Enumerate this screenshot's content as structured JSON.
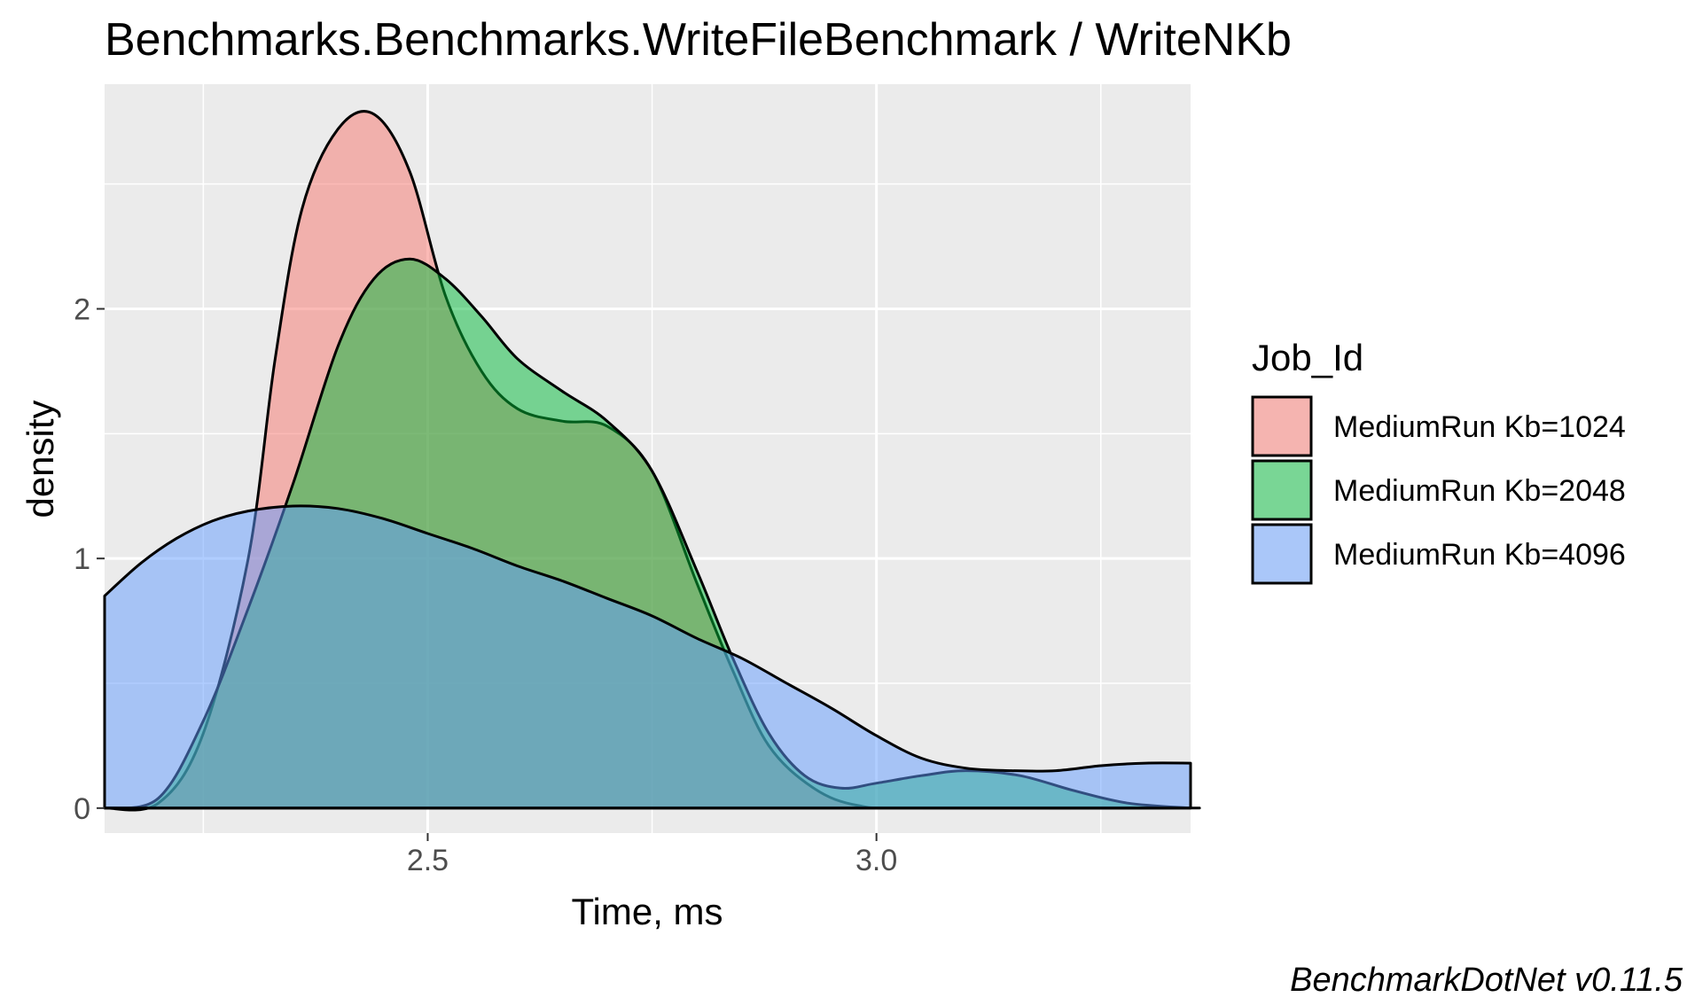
{
  "chart_data": {
    "type": "area",
    "title": "Benchmarks.Benchmarks.WriteFileBenchmark / WriteNKb",
    "xlabel": "Time, ms",
    "ylabel": "density",
    "xlim": [
      2.14,
      3.35
    ],
    "ylim": [
      -0.1,
      2.9
    ],
    "x_ticks": [
      2.5,
      3.0
    ],
    "x_tick_labels": [
      "2.5",
      "3.0"
    ],
    "y_ticks": [
      0,
      1,
      2
    ],
    "y_tick_labels": [
      "0",
      "1",
      "2"
    ],
    "grid": true,
    "legend": {
      "title": "Job_Id",
      "position": "right",
      "entries": [
        "MediumRun Kb=1024",
        "MediumRun Kb=2048",
        "MediumRun Kb=4096"
      ]
    },
    "caption": "BenchmarkDotNet v0.11.5",
    "series": [
      {
        "name": "MediumRun Kb=1024",
        "color": "#F8766D",
        "points": [
          [
            2.14,
            0.0
          ],
          [
            2.2,
            0.02
          ],
          [
            2.25,
            0.3
          ],
          [
            2.3,
            1.0
          ],
          [
            2.33,
            1.8
          ],
          [
            2.36,
            2.4
          ],
          [
            2.4,
            2.72
          ],
          [
            2.44,
            2.78
          ],
          [
            2.48,
            2.55
          ],
          [
            2.52,
            2.05
          ],
          [
            2.56,
            1.75
          ],
          [
            2.6,
            1.6
          ],
          [
            2.65,
            1.55
          ],
          [
            2.7,
            1.53
          ],
          [
            2.75,
            1.35
          ],
          [
            2.8,
            0.9
          ],
          [
            2.84,
            0.55
          ],
          [
            2.88,
            0.25
          ],
          [
            2.93,
            0.08
          ],
          [
            2.98,
            0.01
          ],
          [
            3.05,
            0.0
          ],
          [
            3.36,
            0.0
          ]
        ]
      },
      {
        "name": "MediumRun Kb=2048",
        "color": "#00BA38",
        "points": [
          [
            2.14,
            0.0
          ],
          [
            2.2,
            0.04
          ],
          [
            2.25,
            0.35
          ],
          [
            2.3,
            0.8
          ],
          [
            2.35,
            1.3
          ],
          [
            2.4,
            1.85
          ],
          [
            2.44,
            2.12
          ],
          [
            2.48,
            2.2
          ],
          [
            2.52,
            2.12
          ],
          [
            2.56,
            1.97
          ],
          [
            2.6,
            1.8
          ],
          [
            2.65,
            1.67
          ],
          [
            2.7,
            1.55
          ],
          [
            2.75,
            1.35
          ],
          [
            2.8,
            0.95
          ],
          [
            2.84,
            0.6
          ],
          [
            2.88,
            0.3
          ],
          [
            2.92,
            0.13
          ],
          [
            2.96,
            0.08
          ],
          [
            3.0,
            0.1
          ],
          [
            3.05,
            0.13
          ],
          [
            3.1,
            0.15
          ],
          [
            3.16,
            0.13
          ],
          [
            3.22,
            0.07
          ],
          [
            3.28,
            0.02
          ],
          [
            3.35,
            0.0
          ]
        ]
      },
      {
        "name": "MediumRun Kb=4096",
        "color": "#619CFF",
        "points": [
          [
            2.14,
            0.85
          ],
          [
            2.18,
            0.98
          ],
          [
            2.22,
            1.08
          ],
          [
            2.26,
            1.15
          ],
          [
            2.3,
            1.19
          ],
          [
            2.35,
            1.21
          ],
          [
            2.4,
            1.2
          ],
          [
            2.45,
            1.16
          ],
          [
            2.5,
            1.1
          ],
          [
            2.55,
            1.04
          ],
          [
            2.6,
            0.97
          ],
          [
            2.65,
            0.91
          ],
          [
            2.7,
            0.84
          ],
          [
            2.75,
            0.77
          ],
          [
            2.8,
            0.68
          ],
          [
            2.85,
            0.6
          ],
          [
            2.9,
            0.5
          ],
          [
            2.95,
            0.4
          ],
          [
            3.0,
            0.29
          ],
          [
            3.05,
            0.2
          ],
          [
            3.1,
            0.16
          ],
          [
            3.15,
            0.15
          ],
          [
            3.2,
            0.15
          ],
          [
            3.25,
            0.17
          ],
          [
            3.3,
            0.18
          ],
          [
            3.35,
            0.18
          ]
        ]
      }
    ]
  }
}
